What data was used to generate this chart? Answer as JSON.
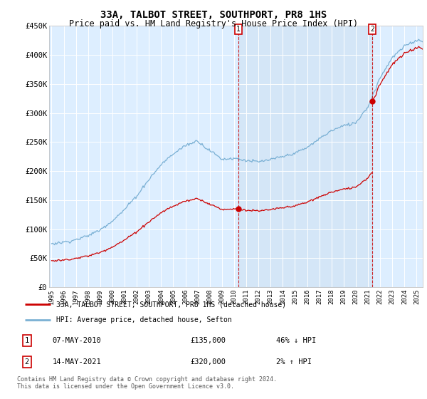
{
  "title": "33A, TALBOT STREET, SOUTHPORT, PR8 1HS",
  "subtitle": "Price paid vs. HM Land Registry's House Price Index (HPI)",
  "title_fontsize": 10,
  "subtitle_fontsize": 8.5,
  "background_color": "#ffffff",
  "plot_bg_color": "#ddeeff",
  "grid_color": "#ffffff",
  "red_line_color": "#cc0000",
  "blue_line_color": "#7ab0d4",
  "shade_color": "#cce0f0",
  "sale1_x": 2010.37,
  "sale1_y": 135000,
  "sale2_x": 2021.37,
  "sale2_y": 320000,
  "sale1_label": "07-MAY-2010",
  "sale2_label": "14-MAY-2021",
  "sale1_price": "£135,000",
  "sale2_price": "£320,000",
  "sale1_hpi": "46% ↓ HPI",
  "sale2_hpi": "2% ↑ HPI",
  "ylim": [
    0,
    450000
  ],
  "xlim": [
    1994.8,
    2025.5
  ],
  "yticks": [
    0,
    50000,
    100000,
    150000,
    200000,
    250000,
    300000,
    350000,
    400000,
    450000
  ],
  "ytick_labels": [
    "£0",
    "£50K",
    "£100K",
    "£150K",
    "£200K",
    "£250K",
    "£300K",
    "£350K",
    "£400K",
    "£450K"
  ],
  "xticks": [
    1995,
    1996,
    1997,
    1998,
    1999,
    2000,
    2001,
    2002,
    2003,
    2004,
    2005,
    2006,
    2007,
    2008,
    2009,
    2010,
    2011,
    2012,
    2013,
    2014,
    2015,
    2016,
    2017,
    2018,
    2019,
    2020,
    2021,
    2022,
    2023,
    2024,
    2025
  ],
  "legend_red": "33A, TALBOT STREET, SOUTHPORT, PR8 1HS (detached house)",
  "legend_blue": "HPI: Average price, detached house, Sefton",
  "footnote": "Contains HM Land Registry data © Crown copyright and database right 2024.\nThis data is licensed under the Open Government Licence v3.0.",
  "marker1_label": "1",
  "marker2_label": "2",
  "hpi_keypoints_x": [
    1995,
    1996,
    1997,
    1998,
    1999,
    2000,
    2001,
    2002,
    2003,
    2004,
    2005,
    2006,
    2007,
    2008,
    2009,
    2010,
    2011,
    2012,
    2013,
    2014,
    2015,
    2016,
    2017,
    2018,
    2019,
    2020,
    2021,
    2022,
    2023,
    2024,
    2025
  ],
  "hpi_keypoints_y": [
    75000,
    78000,
    82000,
    90000,
    100000,
    115000,
    135000,
    158000,
    185000,
    210000,
    228000,
    242000,
    252000,
    236000,
    220000,
    222000,
    218000,
    216000,
    220000,
    225000,
    230000,
    240000,
    255000,
    268000,
    278000,
    282000,
    310000,
    360000,
    395000,
    415000,
    425000
  ]
}
